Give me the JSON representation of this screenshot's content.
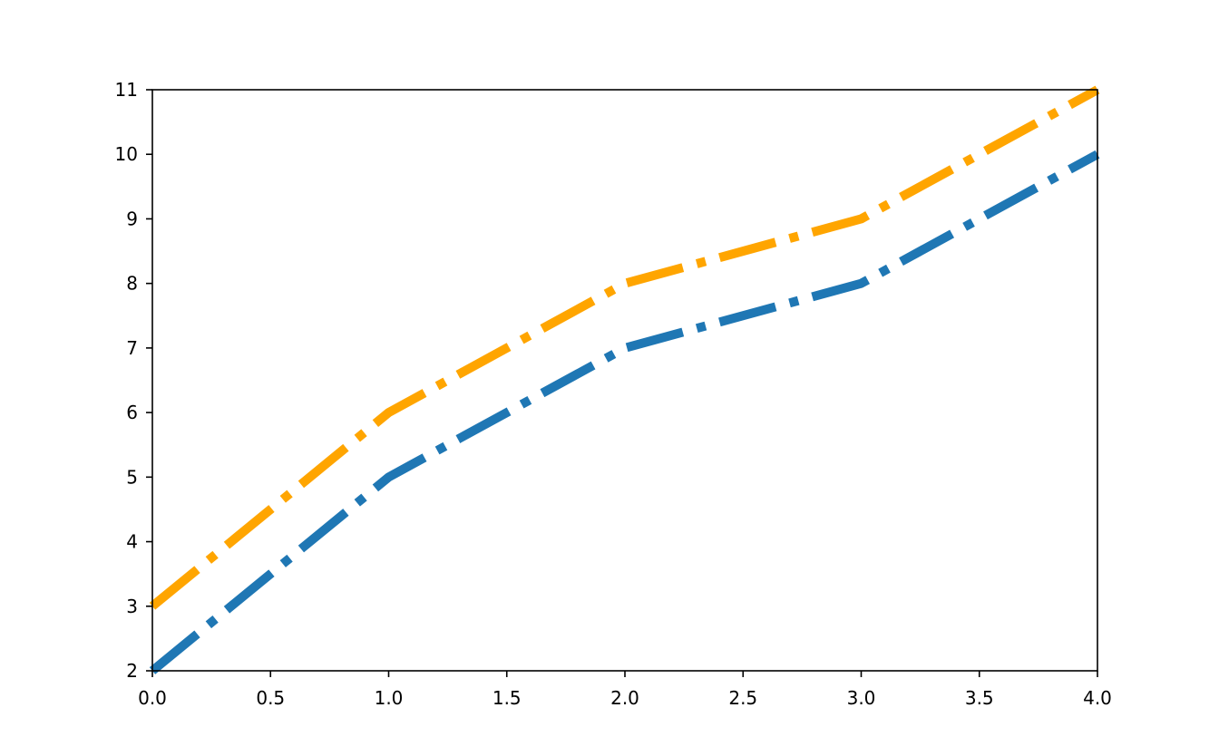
{
  "chart_data": {
    "type": "line",
    "title": "",
    "xlabel": "",
    "ylabel": "",
    "xlim": [
      0,
      4
    ],
    "ylim": [
      2,
      11
    ],
    "grid": false,
    "x_ticks": [
      "0.0",
      "0.5",
      "1.0",
      "1.5",
      "2.0",
      "2.5",
      "3.0",
      "3.5",
      "4.0"
    ],
    "y_ticks": [
      "2",
      "3",
      "4",
      "5",
      "6",
      "7",
      "8",
      "9",
      "10",
      "11"
    ],
    "x": [
      0,
      1,
      2,
      3,
      4
    ],
    "series": [
      {
        "values": [
          2,
          5,
          7,
          8,
          10
        ],
        "color": "#1f77b4",
        "linestyle": "dashdot"
      },
      {
        "values": [
          3,
          6,
          8,
          9,
          11
        ],
        "color": "#ffa500",
        "linestyle": "dashdot"
      }
    ]
  }
}
